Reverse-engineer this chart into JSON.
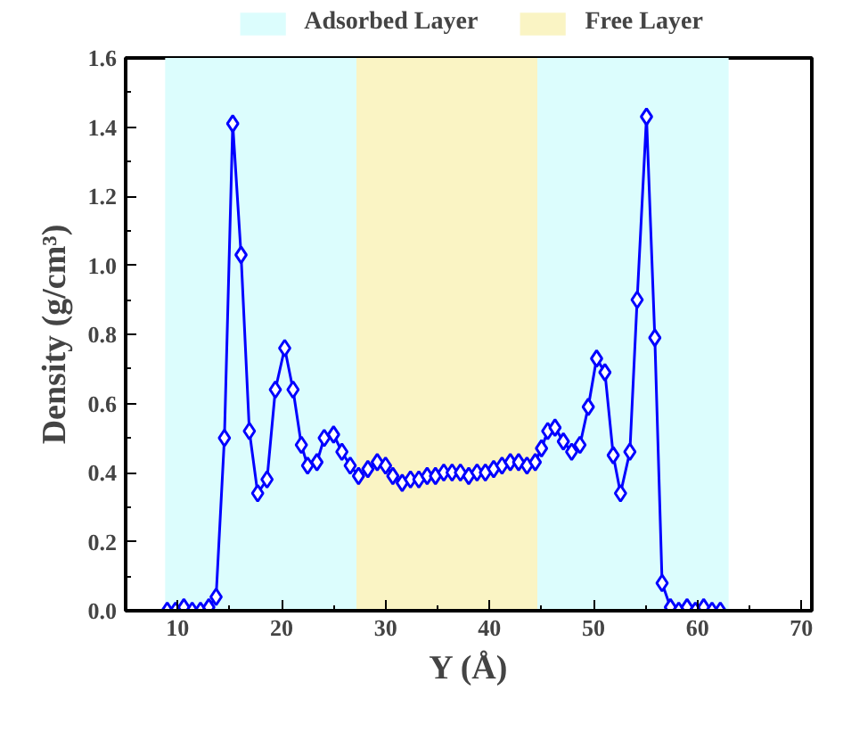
{
  "chart_data": {
    "type": "line",
    "xlabel": "Y (Å)",
    "ylabel": "Density (g/cm³)",
    "x": [
      9.0,
      9.8,
      10.6,
      11.4,
      12.2,
      13.0,
      13.7,
      14.5,
      15.3,
      16.1,
      16.9,
      17.7,
      18.6,
      19.4,
      20.3,
      21.1,
      21.9,
      22.5,
      23.4,
      24.1,
      25.0,
      25.8,
      26.6,
      27.4,
      28.3,
      29.2,
      30.0,
      30.7,
      31.6,
      32.4,
      33.2,
      34.0,
      34.8,
      35.6,
      36.4,
      37.2,
      38.0,
      38.8,
      39.6,
      40.4,
      41.2,
      42.0,
      42.8,
      43.6,
      44.4,
      45.0,
      45.6,
      46.3,
      47.1,
      47.9,
      48.7,
      49.5,
      50.3,
      51.1,
      51.9,
      52.6,
      53.5,
      54.2,
      55.1,
      55.9,
      56.6,
      57.4,
      58.2,
      59.0,
      59.8,
      60.6,
      61.4,
      62.2
    ],
    "series": [
      {
        "color": "#0000ff",
        "values": [
          0,
          0,
          0.01,
          0,
          0,
          0.01,
          0.04,
          0.5,
          1.41,
          1.03,
          0.52,
          0.34,
          0.38,
          0.64,
          0.76,
          0.64,
          0.48,
          0.42,
          0.43,
          0.5,
          0.51,
          0.46,
          0.42,
          0.39,
          0.41,
          0.43,
          0.42,
          0.39,
          0.37,
          0.38,
          0.38,
          0.39,
          0.39,
          0.4,
          0.4,
          0.4,
          0.39,
          0.4,
          0.4,
          0.41,
          0.42,
          0.43,
          0.43,
          0.42,
          0.43,
          0.47,
          0.52,
          0.53,
          0.49,
          0.46,
          0.48,
          0.59,
          0.73,
          0.69,
          0.45,
          0.34,
          0.46,
          0.9,
          1.43,
          0.79,
          0.08,
          0.01,
          0,
          0.01,
          0,
          0.01,
          0,
          0
        ]
      }
    ],
    "xlim": [
      5,
      71
    ],
    "ylim": [
      0,
      1.6
    ],
    "xticks": [
      10,
      20,
      30,
      40,
      50,
      60,
      70
    ],
    "yticks": [
      {
        "value": 0,
        "label": "0.0"
      },
      {
        "value": 0.2,
        "label": "0.2"
      },
      {
        "value": 0.4,
        "label": "0.4"
      },
      {
        "value": 0.6,
        "label": "0.6"
      },
      {
        "value": 0.8,
        "label": "0.8"
      },
      {
        "value": 1.0,
        "label": "1.0"
      },
      {
        "value": 1.2,
        "label": "1.2"
      },
      {
        "value": 1.4,
        "label": "1.4"
      },
      {
        "value": 1.6,
        "label": "1.6"
      }
    ],
    "bands": [
      {
        "axis": "x",
        "from": 8.8,
        "to": 27.2,
        "label": "Adsorbed Layer",
        "color": "#dcfdfd"
      },
      {
        "axis": "x",
        "from": 27.2,
        "to": 44.6,
        "label": "Free Layer",
        "color": "#faf4c4"
      },
      {
        "axis": "x",
        "from": 44.6,
        "to": 63.0,
        "color": "#dcfdfd"
      }
    ],
    "legend": "top",
    "grid": false,
    "marker": "diamond",
    "line_style": "solid"
  }
}
